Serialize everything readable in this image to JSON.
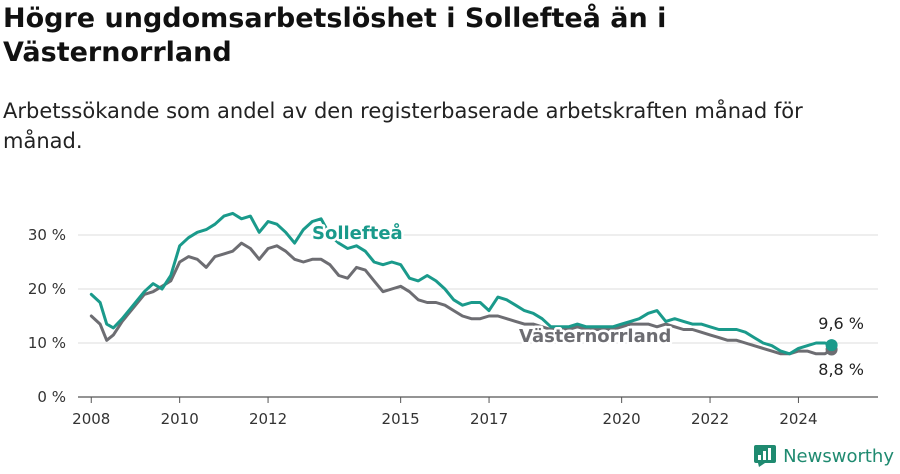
{
  "header": {
    "title": "Högre ungdomsarbetslöshet i Sollefteå än i Västernorrland",
    "subtitle": "Arbetssökande som andel av den registerbaserade arbetskraften månad för månad."
  },
  "brand": {
    "name": "Newsworthy",
    "icon": "newsworthy-logo-icon",
    "color": "#1f8a70"
  },
  "chart_data": {
    "type": "line",
    "title": "Högre ungdomsarbetslöshet i Sollefteå än i Västernorrland",
    "subtitle": "Arbetssökande som andel av den registerbaserade arbetskraften månad för månad.",
    "xlabel": "",
    "ylabel": "",
    "xlim": [
      2007.7,
      2025.8
    ],
    "ylim": [
      0,
      35
    ],
    "x_ticks": [
      2008,
      2010,
      2012,
      2015,
      2017,
      2020,
      2022,
      2024
    ],
    "x_tick_labels": [
      "2008",
      "2010",
      "2012",
      "2015",
      "2017",
      "2020",
      "2022",
      "2024"
    ],
    "y_ticks": [
      0,
      10,
      20,
      30
    ],
    "y_tick_labels": [
      "0 %",
      "10 %",
      "20 %",
      "30 %"
    ],
    "grid": true,
    "legend": "direct labels",
    "series": [
      {
        "name": "Sollefteå",
        "color": "#1a9a8b",
        "end_label": "9,6 %",
        "x": [
          2008.0,
          2008.2,
          2008.35,
          2008.5,
          2008.7,
          2009.0,
          2009.2,
          2009.4,
          2009.6,
          2009.8,
          2010.0,
          2010.2,
          2010.4,
          2010.6,
          2010.8,
          2011.0,
          2011.2,
          2011.4,
          2011.6,
          2011.8,
          2012.0,
          2012.2,
          2012.4,
          2012.6,
          2012.8,
          2013.0,
          2013.2,
          2013.4,
          2013.6,
          2013.8,
          2014.0,
          2014.2,
          2014.4,
          2014.6,
          2014.8,
          2015.0,
          2015.2,
          2015.4,
          2015.6,
          2015.8,
          2016.0,
          2016.2,
          2016.4,
          2016.6,
          2016.8,
          2017.0,
          2017.2,
          2017.4,
          2017.6,
          2017.8,
          2018.0,
          2018.2,
          2018.4,
          2018.6,
          2018.8,
          2019.0,
          2019.2,
          2019.4,
          2019.6,
          2019.8,
          2020.0,
          2020.2,
          2020.4,
          2020.6,
          2020.8,
          2021.0,
          2021.2,
          2021.4,
          2021.6,
          2021.8,
          2022.0,
          2022.2,
          2022.4,
          2022.6,
          2022.8,
          2023.0,
          2023.2,
          2023.4,
          2023.6,
          2023.8,
          2024.0,
          2024.2,
          2024.4,
          2024.6,
          2024.75
        ],
        "y": [
          19.0,
          17.5,
          13.5,
          12.8,
          14.5,
          17.5,
          19.5,
          21.0,
          20.0,
          22.5,
          28.0,
          29.5,
          30.5,
          31.0,
          32.0,
          33.5,
          34.0,
          33.0,
          33.5,
          30.5,
          32.5,
          32.0,
          30.5,
          28.5,
          31.0,
          32.5,
          33.0,
          30.0,
          28.5,
          27.5,
          28.0,
          27.0,
          25.0,
          24.5,
          25.0,
          24.5,
          22.0,
          21.5,
          22.5,
          21.5,
          20.0,
          18.0,
          17.0,
          17.5,
          17.5,
          16.0,
          18.5,
          18.0,
          17.0,
          16.0,
          15.5,
          14.5,
          13.0,
          13.0,
          13.0,
          13.5,
          13.0,
          13.0,
          13.0,
          13.0,
          13.5,
          14.0,
          14.5,
          15.5,
          16.0,
          14.0,
          14.5,
          14.0,
          13.5,
          13.5,
          13.0,
          12.5,
          12.5,
          12.5,
          12.0,
          11.0,
          10.0,
          9.5,
          8.5,
          8.0,
          9.0,
          9.5,
          10.0,
          10.0,
          9.6
        ]
      },
      {
        "name": "Västernorrland",
        "color": "#6d6d72",
        "end_label": "8,8 %",
        "x": [
          2008.0,
          2008.2,
          2008.35,
          2008.5,
          2008.7,
          2009.0,
          2009.2,
          2009.4,
          2009.6,
          2009.8,
          2010.0,
          2010.2,
          2010.4,
          2010.6,
          2010.8,
          2011.0,
          2011.2,
          2011.4,
          2011.6,
          2011.8,
          2012.0,
          2012.2,
          2012.4,
          2012.6,
          2012.8,
          2013.0,
          2013.2,
          2013.4,
          2013.6,
          2013.8,
          2014.0,
          2014.2,
          2014.4,
          2014.6,
          2014.8,
          2015.0,
          2015.2,
          2015.4,
          2015.6,
          2015.8,
          2016.0,
          2016.2,
          2016.4,
          2016.6,
          2016.8,
          2017.0,
          2017.2,
          2017.4,
          2017.6,
          2017.8,
          2018.0,
          2018.2,
          2018.4,
          2018.6,
          2018.8,
          2019.0,
          2019.2,
          2019.4,
          2019.6,
          2019.8,
          2020.0,
          2020.2,
          2020.4,
          2020.6,
          2020.8,
          2021.0,
          2021.2,
          2021.4,
          2021.6,
          2021.8,
          2022.0,
          2022.2,
          2022.4,
          2022.6,
          2022.8,
          2023.0,
          2023.2,
          2023.4,
          2023.6,
          2023.8,
          2024.0,
          2024.2,
          2024.4,
          2024.6,
          2024.75
        ],
        "y": [
          15.0,
          13.5,
          10.5,
          11.5,
          14.0,
          17.0,
          19.0,
          19.5,
          20.5,
          21.5,
          25.0,
          26.0,
          25.5,
          24.0,
          26.0,
          26.5,
          27.0,
          28.5,
          27.5,
          25.5,
          27.5,
          28.0,
          27.0,
          25.5,
          25.0,
          25.5,
          25.5,
          24.5,
          22.5,
          22.0,
          24.0,
          23.5,
          21.5,
          19.5,
          20.0,
          20.5,
          19.5,
          18.0,
          17.5,
          17.5,
          17.0,
          16.0,
          15.0,
          14.5,
          14.5,
          15.0,
          15.0,
          14.5,
          14.0,
          13.5,
          13.5,
          13.0,
          12.5,
          12.5,
          12.5,
          13.0,
          12.5,
          12.5,
          12.5,
          12.5,
          13.0,
          13.5,
          13.5,
          13.5,
          13.0,
          13.5,
          13.0,
          12.5,
          12.5,
          12.0,
          11.5,
          11.0,
          10.5,
          10.5,
          10.0,
          9.5,
          9.0,
          8.5,
          8.0,
          8.0,
          8.5,
          8.5,
          8.0,
          8.0,
          8.8
        ]
      }
    ]
  }
}
